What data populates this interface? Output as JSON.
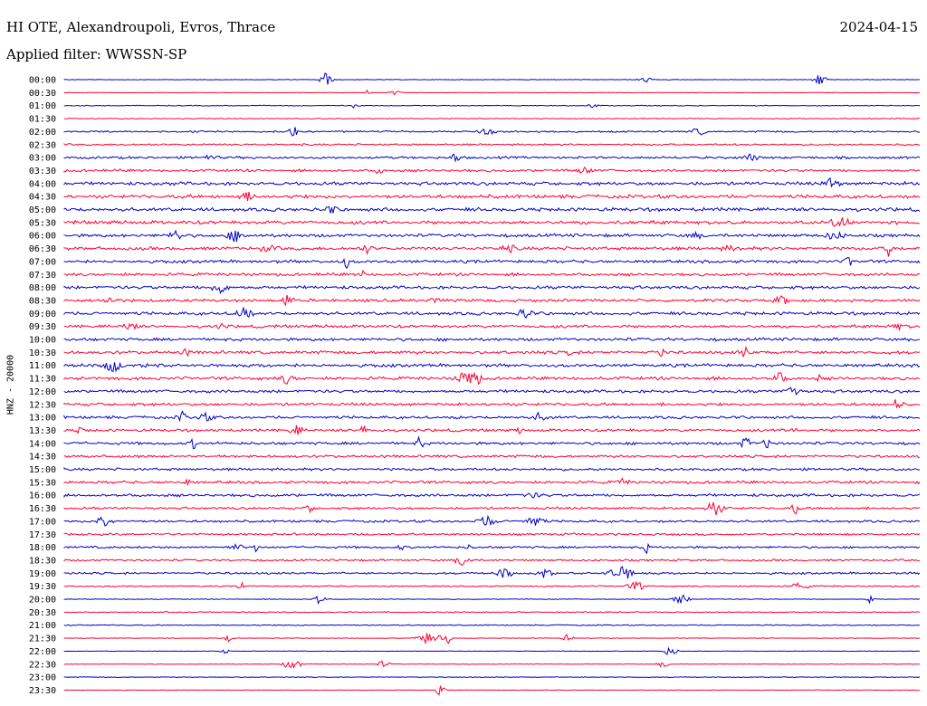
{
  "header": {
    "station": "HI OTE, Alexandroupoli, Evros, Thrace",
    "date": "2024-04-15",
    "filter": "Applied filter: WWSSN-SP"
  },
  "chart_data": {
    "type": "line",
    "title": "HI OTE, Alexandroupoli, Evros, Thrace",
    "ylabel": "HNZ - 20000",
    "row_labels": [
      "00:00",
      "00:30",
      "01:00",
      "01:30",
      "02:00",
      "02:30",
      "03:00",
      "03:30",
      "04:00",
      "04:30",
      "05:00",
      "05:30",
      "06:00",
      "06:30",
      "07:00",
      "07:30",
      "08:00",
      "08:30",
      "09:00",
      "09:30",
      "10:00",
      "10:30",
      "11:00",
      "11:30",
      "12:00",
      "12:30",
      "13:00",
      "13:30",
      "14:00",
      "14:30",
      "15:00",
      "15:30",
      "16:00",
      "16:30",
      "17:00",
      "17:30",
      "18:00",
      "18:30",
      "19:00",
      "19:30",
      "20:00",
      "20:30",
      "21:00",
      "21:30",
      "22:00",
      "22:30",
      "23:00",
      "23:30"
    ],
    "row_colors": [
      "#0000cc",
      "#ff0033"
    ],
    "row_noise": [
      0.3,
      0.3,
      0.45,
      0.45,
      0.9,
      1.0,
      1.3,
      1.4,
      1.8,
      1.9,
      1.9,
      1.9,
      1.7,
      1.8,
      1.6,
      1.6,
      1.7,
      1.6,
      1.7,
      1.6,
      1.6,
      1.7,
      1.7,
      1.7,
      1.6,
      1.6,
      1.5,
      1.5,
      1.5,
      1.4,
      1.4,
      1.5,
      1.5,
      1.3,
      1.3,
      1.2,
      1.2,
      1.1,
      1.1,
      0.7,
      0.4,
      0.6,
      0.6,
      0.3,
      0.3,
      0.3,
      0.4,
      0.3
    ]
  }
}
